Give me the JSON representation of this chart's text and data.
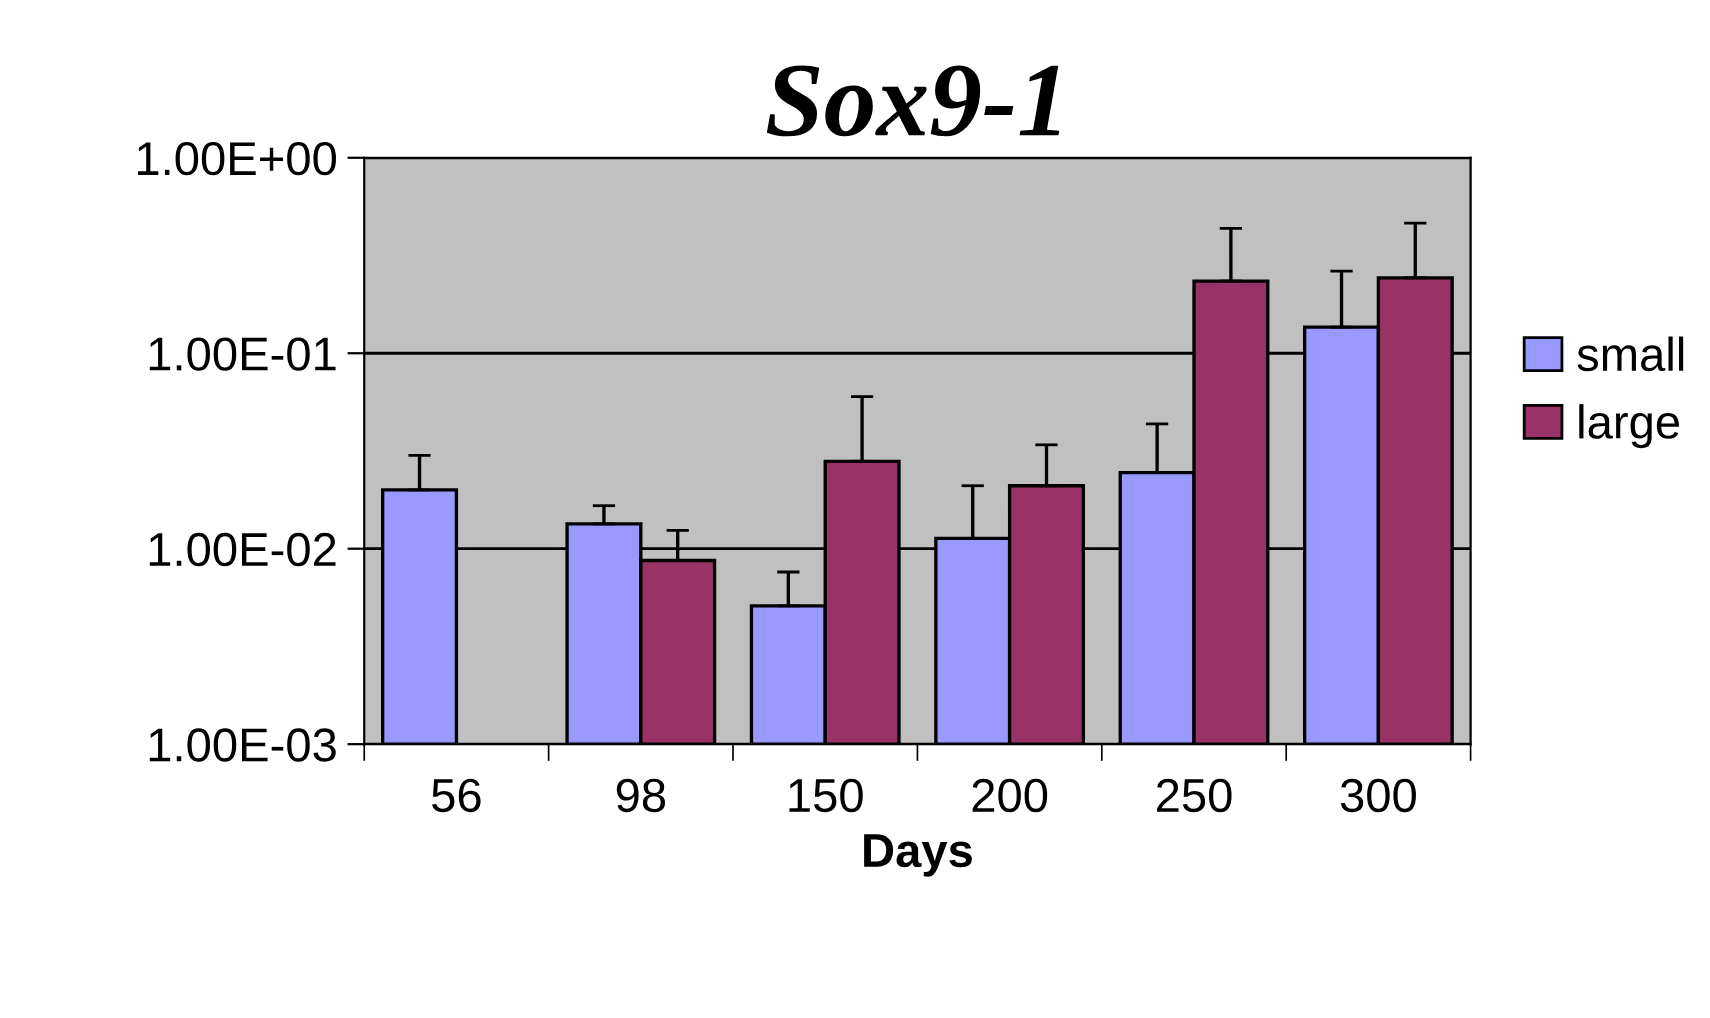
{
  "chart_data": {
    "type": "bar",
    "title": "Sox9-1",
    "xlabel": "Days",
    "categories": [
      "56",
      "98",
      "150",
      "200",
      "250",
      "300"
    ],
    "series": [
      {
        "name": "small",
        "color": "#9999ff",
        "values": [
          0.02,
          0.0134,
          0.0051,
          0.0113,
          0.0245,
          0.136
        ],
        "errors": [
          [
            0.02,
            0.03
          ],
          [
            0.0134,
            0.0166
          ],
          [
            0.0051,
            0.0076
          ],
          [
            0.0113,
            0.021
          ],
          [
            0.0245,
            0.0435
          ],
          [
            0.136,
            0.263
          ]
        ]
      },
      {
        "name": "large",
        "color": "#993366",
        "values": [
          null,
          0.0087,
          0.028,
          0.021,
          0.234,
          0.243
        ],
        "errors": [
          null,
          [
            0.0087,
            0.0124
          ],
          [
            0.028,
            0.06
          ],
          [
            0.021,
            0.034
          ],
          [
            0.234,
            0.435
          ],
          [
            0.243,
            0.463
          ]
        ]
      }
    ],
    "log": true,
    "ylim": [
      0.001,
      1
    ],
    "yticks": [
      {
        "value": 0.001,
        "label": "1.00E-03"
      },
      {
        "value": 0.01,
        "label": "1.00E-02"
      },
      {
        "value": 0.1,
        "label": "1.00E-01"
      },
      {
        "value": 1,
        "label": "1.00E+00"
      }
    ],
    "grid": "y",
    "legend": "right"
  }
}
